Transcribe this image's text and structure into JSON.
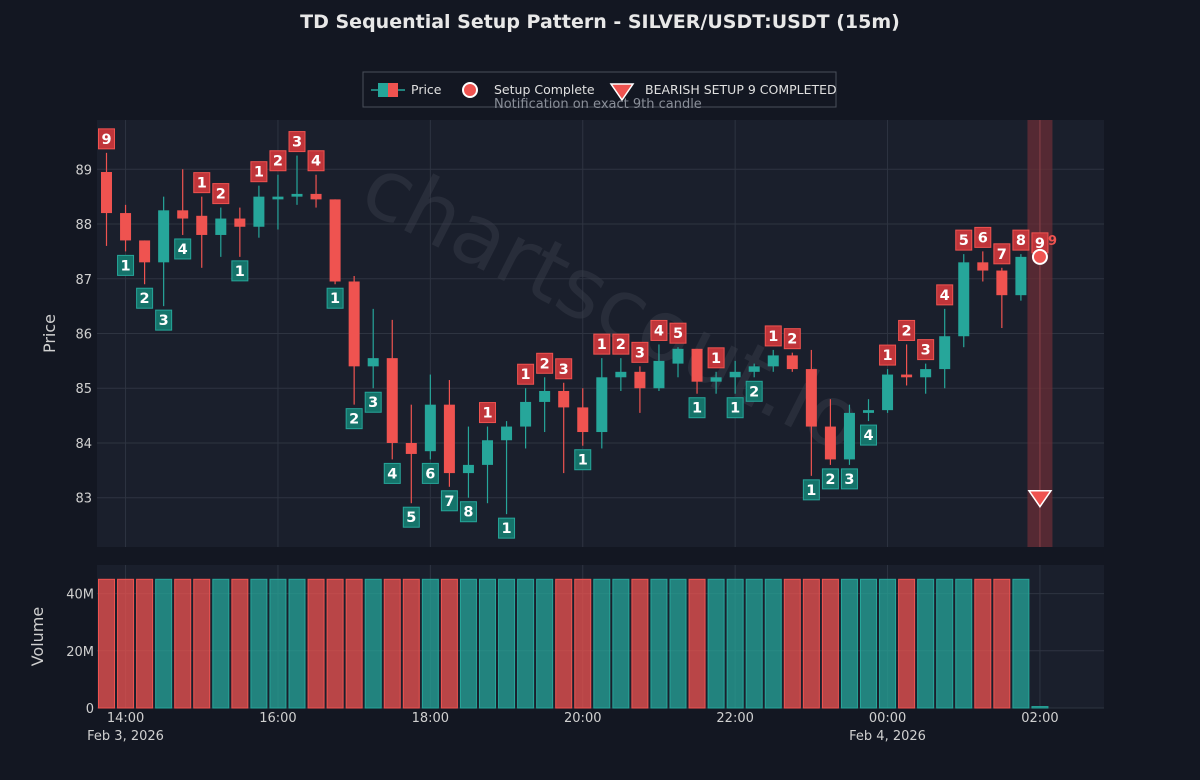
{
  "title": "TD Sequential Setup Pattern - SILVER/USDT:USDT (15m)",
  "watermark": "chartscout.io",
  "legend": {
    "price": "Price",
    "setup_complete": "Setup Complete",
    "bearish": "BEARISH SETUP 9 COMPLETED",
    "notification": "Notification on exact 9th candle"
  },
  "annotation_9": "9",
  "colors": {
    "bull": "#26a69a",
    "bear": "#ef5350",
    "bg": "#131722",
    "plot_bg": "#1a1f2c",
    "grid": "#2e3441",
    "highlight": "#6a2e35",
    "label_bull": "#15736a",
    "label_bear": "#c0353a"
  },
  "chart_data": [
    {
      "type": "candlestick",
      "ylabel": "Price",
      "ylim": [
        82.1,
        89.9
      ],
      "yticks": [
        83,
        84,
        85,
        86,
        87,
        88,
        89
      ],
      "x_interval_minutes": 15,
      "x_start": "2026-02-03 13:45",
      "xticks": [
        {
          "label": "14:00",
          "sub": "Feb 3, 2026"
        },
        {
          "label": "16:00",
          "sub": ""
        },
        {
          "label": "18:00",
          "sub": ""
        },
        {
          "label": "20:00",
          "sub": ""
        },
        {
          "label": "22:00",
          "sub": ""
        },
        {
          "label": "00:00",
          "sub": "Feb 4, 2026"
        },
        {
          "label": "02:00",
          "sub": ""
        }
      ],
      "candles": [
        {
          "t": "13:45",
          "o": 88.95,
          "h": 89.3,
          "l": 87.6,
          "c": 88.2,
          "n": "9",
          "d": "bear"
        },
        {
          "t": "14:00",
          "o": 88.2,
          "h": 88.35,
          "l": 87.5,
          "c": 87.7,
          "n": "1",
          "d": "bull"
        },
        {
          "t": "14:15",
          "o": 87.7,
          "h": 87.7,
          "l": 86.9,
          "c": 87.3,
          "n": "2",
          "d": "bull"
        },
        {
          "t": "14:30",
          "o": 87.3,
          "h": 88.5,
          "l": 86.5,
          "c": 88.25,
          "n": "3",
          "d": "bull"
        },
        {
          "t": "14:45",
          "o": 88.25,
          "h": 89.0,
          "l": 87.8,
          "c": 88.1,
          "n": "4",
          "d": "bull"
        },
        {
          "t": "15:00",
          "o": 88.15,
          "h": 88.5,
          "l": 87.2,
          "c": 87.8,
          "n": "1",
          "d": "bear"
        },
        {
          "t": "15:15",
          "o": 87.8,
          "h": 88.3,
          "l": 87.4,
          "c": 88.1,
          "n": "2",
          "d": "bear"
        },
        {
          "t": "15:30",
          "o": 88.1,
          "h": 88.3,
          "l": 87.4,
          "c": 87.95,
          "n": "1",
          "d": "bull"
        },
        {
          "t": "15:45",
          "o": 87.95,
          "h": 88.7,
          "l": 87.75,
          "c": 88.5,
          "n": "1",
          "d": "bear"
        },
        {
          "t": "16:00",
          "o": 88.45,
          "h": 88.9,
          "l": 87.9,
          "c": 88.5,
          "n": "2",
          "d": "bear"
        },
        {
          "t": "16:15",
          "o": 88.5,
          "h": 89.25,
          "l": 88.35,
          "c": 88.55,
          "n": "3",
          "d": "bear"
        },
        {
          "t": "16:30",
          "o": 88.55,
          "h": 88.9,
          "l": 88.3,
          "c": 88.45,
          "n": "4",
          "d": "bear"
        },
        {
          "t": "16:45",
          "o": 88.45,
          "h": 88.45,
          "l": 86.9,
          "c": 86.95,
          "n": "1",
          "d": "bull"
        },
        {
          "t": "17:00",
          "o": 86.95,
          "h": 87.05,
          "l": 84.7,
          "c": 85.4,
          "n": "2",
          "d": "bull"
        },
        {
          "t": "17:15",
          "o": 85.4,
          "h": 86.45,
          "l": 85.0,
          "c": 85.55,
          "n": "3",
          "d": "bull"
        },
        {
          "t": "17:30",
          "o": 85.55,
          "h": 86.25,
          "l": 83.7,
          "c": 84.0,
          "n": "4",
          "d": "bull"
        },
        {
          "t": "17:45",
          "o": 84.0,
          "h": 84.7,
          "l": 82.9,
          "c": 83.8,
          "n": "5",
          "d": "bull"
        },
        {
          "t": "18:00",
          "o": 83.85,
          "h": 85.25,
          "l": 83.7,
          "c": 84.7,
          "n": "6",
          "d": "bull"
        },
        {
          "t": "18:15",
          "o": 84.7,
          "h": 85.15,
          "l": 83.2,
          "c": 83.45,
          "n": "7",
          "d": "bull"
        },
        {
          "t": "18:30",
          "o": 83.45,
          "h": 84.3,
          "l": 83.0,
          "c": 83.6,
          "n": "8",
          "d": "bull"
        },
        {
          "t": "18:45",
          "o": 83.6,
          "h": 84.3,
          "l": 82.9,
          "c": 84.05,
          "n": "1",
          "d": "bear"
        },
        {
          "t": "19:00",
          "o": 84.05,
          "h": 84.4,
          "l": 82.7,
          "c": 84.3,
          "n": "1",
          "d": "bull"
        },
        {
          "t": "19:15",
          "o": 84.3,
          "h": 85.0,
          "l": 83.9,
          "c": 84.75,
          "n": "1",
          "d": "bear"
        },
        {
          "t": "19:30",
          "o": 84.75,
          "h": 85.2,
          "l": 84.2,
          "c": 84.95,
          "n": "2",
          "d": "bear"
        },
        {
          "t": "19:45",
          "o": 84.95,
          "h": 85.1,
          "l": 83.45,
          "c": 84.65,
          "n": "3",
          "d": "bear"
        },
        {
          "t": "20:00",
          "o": 84.65,
          "h": 85.0,
          "l": 83.95,
          "c": 84.2,
          "n": "1",
          "d": "bull"
        },
        {
          "t": "20:15",
          "o": 84.2,
          "h": 85.55,
          "l": 83.9,
          "c": 85.2,
          "n": "1",
          "d": "bear"
        },
        {
          "t": "20:30",
          "o": 85.2,
          "h": 85.55,
          "l": 84.95,
          "c": 85.3,
          "n": "2",
          "d": "bear"
        },
        {
          "t": "20:45",
          "o": 85.3,
          "h": 85.4,
          "l": 84.55,
          "c": 85.0,
          "n": "3",
          "d": "bear"
        },
        {
          "t": "21:00",
          "o": 85.0,
          "h": 85.8,
          "l": 84.95,
          "c": 85.5,
          "n": "4",
          "d": "bear"
        },
        {
          "t": "21:15",
          "o": 85.45,
          "h": 85.75,
          "l": 85.2,
          "c": 85.72,
          "n": "5",
          "d": "bear"
        },
        {
          "t": "21:30",
          "o": 85.72,
          "h": 85.72,
          "l": 84.9,
          "c": 85.12,
          "n": "1",
          "d": "bull"
        },
        {
          "t": "21:45",
          "o": 85.12,
          "h": 85.3,
          "l": 84.9,
          "c": 85.2,
          "n": "1",
          "d": "bear"
        },
        {
          "t": "22:00",
          "o": 85.2,
          "h": 85.5,
          "l": 84.9,
          "c": 85.3,
          "n": "1",
          "d": "bull"
        },
        {
          "t": "22:15",
          "o": 85.3,
          "h": 85.45,
          "l": 85.2,
          "c": 85.4,
          "n": "2",
          "d": "bull"
        },
        {
          "t": "22:30",
          "o": 85.4,
          "h": 85.7,
          "l": 85.3,
          "c": 85.6,
          "n": "1",
          "d": "bear"
        },
        {
          "t": "22:45",
          "o": 85.6,
          "h": 85.65,
          "l": 85.3,
          "c": 85.35,
          "n": "2",
          "d": "bear"
        },
        {
          "t": "23:00",
          "o": 85.35,
          "h": 85.7,
          "l": 83.4,
          "c": 84.3,
          "n": "1",
          "d": "bull"
        },
        {
          "t": "23:15",
          "o": 84.3,
          "h": 84.8,
          "l": 83.6,
          "c": 83.7,
          "n": "2",
          "d": "bull"
        },
        {
          "t": "23:30",
          "o": 83.7,
          "h": 84.7,
          "l": 83.6,
          "c": 84.55,
          "n": "3",
          "d": "bull"
        },
        {
          "t": "23:45",
          "o": 84.55,
          "h": 84.8,
          "l": 84.4,
          "c": 84.6,
          "n": "4",
          "d": "bull"
        },
        {
          "t": "00:00",
          "o": 84.6,
          "h": 85.35,
          "l": 84.55,
          "c": 85.25,
          "n": "1",
          "d": "bear"
        },
        {
          "t": "00:15",
          "o": 85.25,
          "h": 85.8,
          "l": 85.05,
          "c": 85.2,
          "n": "2",
          "d": "bear"
        },
        {
          "t": "00:30",
          "o": 85.2,
          "h": 85.45,
          "l": 84.9,
          "c": 85.35,
          "n": "3",
          "d": "bear"
        },
        {
          "t": "00:45",
          "o": 85.35,
          "h": 86.45,
          "l": 85.0,
          "c": 85.95,
          "n": "4",
          "d": "bear"
        },
        {
          "t": "01:00",
          "o": 85.95,
          "h": 87.45,
          "l": 85.75,
          "c": 87.3,
          "n": "5",
          "d": "bear"
        },
        {
          "t": "01:15",
          "o": 87.3,
          "h": 87.5,
          "l": 86.95,
          "c": 87.15,
          "n": "6",
          "d": "bear"
        },
        {
          "t": "01:30",
          "o": 87.15,
          "h": 87.2,
          "l": 86.1,
          "c": 86.7,
          "n": "7",
          "d": "bear"
        },
        {
          "t": "01:45",
          "o": 86.7,
          "h": 87.45,
          "l": 86.6,
          "c": 87.4,
          "n": "8",
          "d": "bear"
        },
        {
          "t": "02:00",
          "o": 87.4,
          "h": 87.4,
          "l": 87.4,
          "c": 87.4,
          "n": "9",
          "d": "bear"
        }
      ],
      "setup_complete": {
        "t": "02:00",
        "price": 87.4
      },
      "bearish_marker": {
        "t": "02:00",
        "price": 83.0
      }
    },
    {
      "type": "bar",
      "ylabel": "Volume",
      "ylim": [
        0,
        50000000
      ],
      "yticks": [
        {
          "v": 0,
          "label": "0"
        },
        {
          "v": 20000000,
          "label": "20M"
        },
        {
          "v": 40000000,
          "label": "40M"
        }
      ],
      "values": [
        45000000,
        45000000,
        45000000,
        45000000,
        45000000,
        45000000,
        45000000,
        45000000,
        45000000,
        45000000,
        45000000,
        45000000,
        45000000,
        45000000,
        45000000,
        45000000,
        45000000,
        45000000,
        45000000,
        45000000,
        45000000,
        45000000,
        45000000,
        45000000,
        45000000,
        45000000,
        45000000,
        45000000,
        45000000,
        45000000,
        45000000,
        45000000,
        45000000,
        45000000,
        45000000,
        45000000,
        45000000,
        45000000,
        45000000,
        45000000,
        45000000,
        45000000,
        45000000,
        45000000,
        45000000,
        45000000,
        45000000,
        45000000,
        45000000,
        500000
      ]
    }
  ]
}
